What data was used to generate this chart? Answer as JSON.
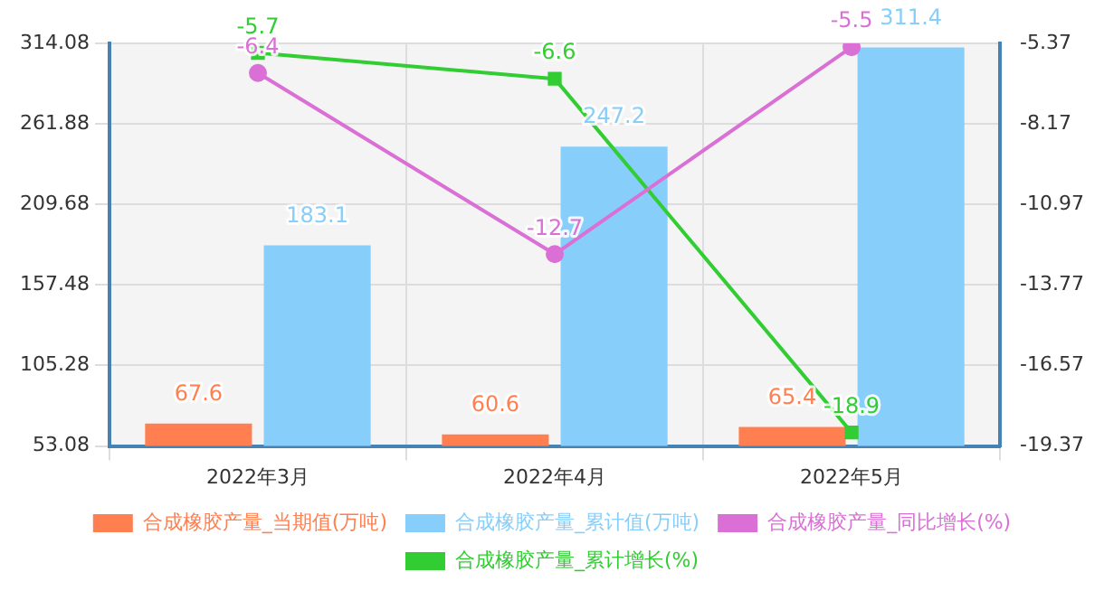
{
  "chart_data": {
    "type": "bar",
    "categories": [
      "2022年3月",
      "2022年4月",
      "2022年5月"
    ],
    "series": [
      {
        "name": "合成橡胶产量_当期值(万吨)",
        "color": "#ff7f50",
        "values": [
          67.6,
          60.6,
          65.4
        ]
      },
      {
        "name": "合成橡胶产量_累计值(万吨)",
        "color": "#87cefa",
        "values": [
          183.1,
          247.2,
          311.4
        ]
      },
      {
        "name": "合成橡胶产量_同比增长(%)",
        "type": "line",
        "axis": "y2",
        "color": "#da70d6",
        "marker": "circle",
        "values": [
          -6.4,
          -12.7,
          -5.5
        ]
      },
      {
        "name": "合成橡胶产量_累计增长(%)",
        "type": "line",
        "axis": "y2",
        "color": "#32cd32",
        "marker": "square",
        "values": [
          -5.7,
          -6.6,
          -18.9
        ]
      }
    ],
    "ylim": [
      53.08,
      314.08
    ],
    "yticks": [
      53.08,
      105.28,
      157.48,
      209.68,
      261.88,
      314.08
    ],
    "y2lim": [
      -19.37,
      -5.37
    ],
    "y2ticks": [
      -19.37,
      -16.57,
      -13.77,
      -10.97,
      -8.17,
      -5.37
    ],
    "grid": true,
    "legend": "bottom",
    "data_labels": true
  }
}
